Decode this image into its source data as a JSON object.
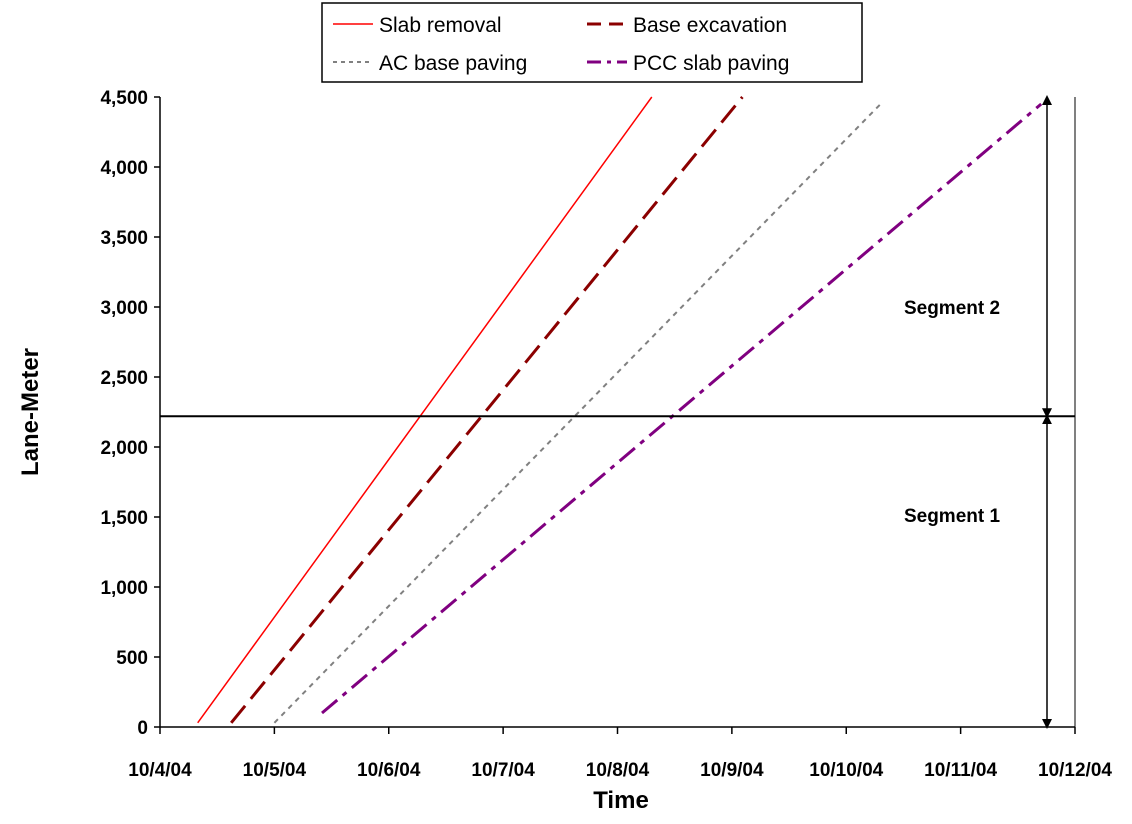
{
  "chart_data": {
    "type": "line",
    "xlabel": "Time",
    "ylabel": "Lane-Meter",
    "x_ticks": [
      "10/4/04",
      "10/5/04",
      "10/6/04",
      "10/7/04",
      "10/8/04",
      "10/9/04",
      "10/10/04",
      "10/11/04",
      "10/12/04"
    ],
    "xlim": [
      "10/4/04",
      "10/12/04"
    ],
    "y_ticks": [
      "0",
      "500",
      "1,000",
      "1,500",
      "2,000",
      "2,500",
      "3,000",
      "3,500",
      "4,000",
      "4,500"
    ],
    "ylim": [
      0,
      4500
    ],
    "grid": false,
    "legend": {
      "position": "top",
      "entries": [
        "Slab removal",
        "Base excavation",
        "AC base paving",
        "PCC slab paving"
      ]
    },
    "series": [
      {
        "name": "Slab removal",
        "color": "#ff0000",
        "dash": "solid",
        "points": [
          {
            "x": "10/4/04 07:55",
            "y": 30
          },
          {
            "x": "10/8/04 07:12",
            "y": 4500
          }
        ]
      },
      {
        "name": "Base excavation",
        "color": "#8b0000",
        "dash": "dashed",
        "points": [
          {
            "x": "10/4/04 14:57",
            "y": 30
          },
          {
            "x": "10/9/04 02:12",
            "y": 4500
          }
        ]
      },
      {
        "name": "AC base paving",
        "color": "#808080",
        "dash": "dotted",
        "points": [
          {
            "x": "10/5/04 00:00",
            "y": 30
          },
          {
            "x": "10/10/04 07:12",
            "y": 4450
          }
        ]
      },
      {
        "name": "PCC slab paving",
        "color": "#800080",
        "dash": "dash-dot",
        "points": [
          {
            "x": "10/5/04 10:00",
            "y": 100
          },
          {
            "x": "10/11/04 16:55",
            "y": 4450
          }
        ]
      }
    ],
    "reference_line": {
      "y": 2220,
      "color": "#000000"
    },
    "annotations": [
      {
        "text": "Segment 2",
        "y_from": 2220,
        "y_to": 4500
      },
      {
        "text": "Segment 1",
        "y_from": 0,
        "y_to": 2220
      }
    ]
  }
}
